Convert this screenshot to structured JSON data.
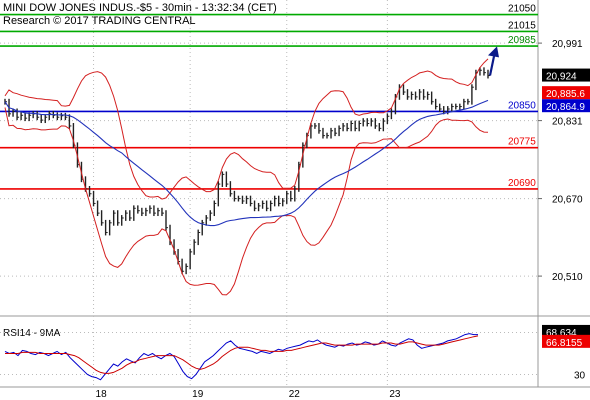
{
  "header": {
    "line1": "MINI DOW JONES INDUS.-$5 - 30min - 13:32:34 (CET)",
    "line2": "Research © 2017 TRADING CENTRAL"
  },
  "chart_data": [
    {
      "type": "line",
      "name": "price-panel",
      "ylim": [
        20440,
        21080
      ],
      "y_axis_ticks": [
        20991,
        20831,
        20670,
        20510
      ],
      "y_axis_tick_labels": [
        "20,991",
        "20,831",
        "20,670",
        "20,510"
      ],
      "x_axis_ticks": [
        "18",
        "19",
        "22",
        "23"
      ],
      "grid": true,
      "levels": [
        {
          "label": "21050",
          "value": 21050,
          "color": "#00aa00",
          "label_color": "#000000"
        },
        {
          "label": "21015",
          "value": 21015,
          "color": "#00aa00",
          "label_color": "#000000"
        },
        {
          "label": "20985",
          "value": 20985,
          "color": "#00aa00",
          "label_color": "#008800"
        },
        {
          "label": "20850",
          "value": 20850,
          "color": "#0000cc",
          "label_color": "#0000cc"
        },
        {
          "label": "20775",
          "value": 20775,
          "color": "#ee0000",
          "label_color": "#ee0000"
        },
        {
          "label": "20690",
          "value": 20690,
          "color": "#ee0000",
          "label_color": "#ee0000"
        }
      ],
      "value_tags": [
        {
          "label": "20,924",
          "value": 20924,
          "bg": "#000000",
          "fg": "#ffffff"
        },
        {
          "label": "20,885.6",
          "value": 20885.6,
          "bg": "#ee0000",
          "fg": "#ffffff"
        },
        {
          "label": "20,864.9",
          "value": 20864.9,
          "bg": "#0000cc",
          "fg": "#ffffff"
        }
      ],
      "close_series": [
        20870,
        20845,
        20850,
        20838,
        20842,
        20836,
        20842,
        20845,
        20838,
        20832,
        20838,
        20845,
        20842,
        20838,
        20841,
        20838,
        20820,
        20780,
        20740,
        20710,
        20690,
        20680,
        20660,
        20640,
        20620,
        20600,
        20620,
        20640,
        20620,
        20630,
        20640,
        20630,
        20650,
        20645,
        20640,
        20645,
        20650,
        20640,
        20645,
        20640,
        20610,
        20580,
        20560,
        20540,
        20520,
        20530,
        20560,
        20580,
        20600,
        20620,
        20630,
        20640,
        20660,
        20700,
        20720,
        20700,
        20680,
        20670,
        20670,
        20665,
        20670,
        20660,
        20650,
        20655,
        20660,
        20650,
        20660,
        20670,
        20660,
        20665,
        20680,
        20670,
        20690,
        20740,
        20780,
        20800,
        20820,
        20820,
        20810,
        20800,
        20800,
        20810,
        20805,
        20815,
        20820,
        20815,
        20825,
        20815,
        20825,
        20830,
        20825,
        20830,
        20820,
        20815,
        20830,
        20840,
        20850,
        20880,
        20900,
        20890,
        20880,
        20885,
        20880,
        20890,
        20880,
        20885,
        20870,
        20860,
        20855,
        20850,
        20855,
        20860,
        20860,
        20860,
        20870,
        20870,
        20900,
        20930,
        20935,
        20930,
        20924
      ],
      "arrow": {
        "from_value": 20924,
        "to_value": 21005
      }
    },
    {
      "type": "line",
      "name": "rsi-panel",
      "title": "RSI14 - 9MA",
      "ylim": [
        20,
        80
      ],
      "y_axis_ticks": [
        30
      ],
      "y_axis_tick_labels": [
        "30"
      ],
      "value_tags": [
        {
          "label": "68.634",
          "value": 68.634,
          "bg": "#000000",
          "fg": "#ffffff"
        },
        {
          "label": "66.8155",
          "value": 66.8155,
          "bg": "#ee0000",
          "fg": "#ffffff"
        }
      ],
      "series": [
        {
          "name": "RSI14",
          "color": "#0000cc",
          "values": [
            52,
            50,
            51,
            48,
            53,
            52,
            50,
            49,
            51,
            50,
            48,
            50,
            52,
            49,
            51,
            46,
            42,
            38,
            34,
            30,
            28,
            27,
            25,
            30,
            35,
            40,
            38,
            42,
            45,
            43,
            41,
            46,
            50,
            48,
            50,
            47,
            45,
            48,
            50,
            47,
            40,
            33,
            28,
            26,
            30,
            36,
            42,
            45,
            48,
            52,
            56,
            60,
            62,
            58,
            55,
            54,
            53,
            52,
            50,
            52,
            51,
            50,
            52,
            54,
            53,
            55,
            56,
            57,
            58,
            60,
            62,
            61,
            63,
            60,
            58,
            57,
            56,
            58,
            57,
            59,
            60,
            58,
            59,
            61,
            60,
            58,
            59,
            62,
            60,
            58,
            57,
            60,
            62,
            64,
            63,
            58,
            55,
            56,
            57,
            58,
            59,
            60,
            62,
            63,
            64,
            66,
            68,
            69,
            68,
            68
          ]
        },
        {
          "name": "MA9",
          "color": "#cc0000",
          "values": [
            50,
            50,
            50,
            50,
            51,
            51,
            51,
            51,
            50,
            50,
            50,
            50,
            50,
            50,
            50,
            49,
            48,
            46,
            43,
            40,
            37,
            34,
            32,
            31,
            31,
            32,
            34,
            36,
            39,
            41,
            42,
            44,
            45,
            46,
            47,
            48,
            48,
            48,
            48,
            48,
            46,
            44,
            41,
            38,
            36,
            35,
            36,
            38,
            40,
            43,
            47,
            50,
            53,
            55,
            56,
            56,
            56,
            55,
            54,
            53,
            53,
            52,
            52,
            52,
            52,
            53,
            53,
            54,
            55,
            56,
            57,
            58,
            59,
            60,
            60,
            59,
            58,
            58,
            58,
            58,
            58,
            59,
            59,
            59,
            59,
            59,
            59,
            60,
            60,
            60,
            59,
            59,
            60,
            61,
            61,
            60,
            59,
            58,
            58,
            58,
            58,
            59,
            60,
            61,
            62,
            63,
            64,
            65,
            66,
            66.8
          ]
        }
      ]
    }
  ]
}
